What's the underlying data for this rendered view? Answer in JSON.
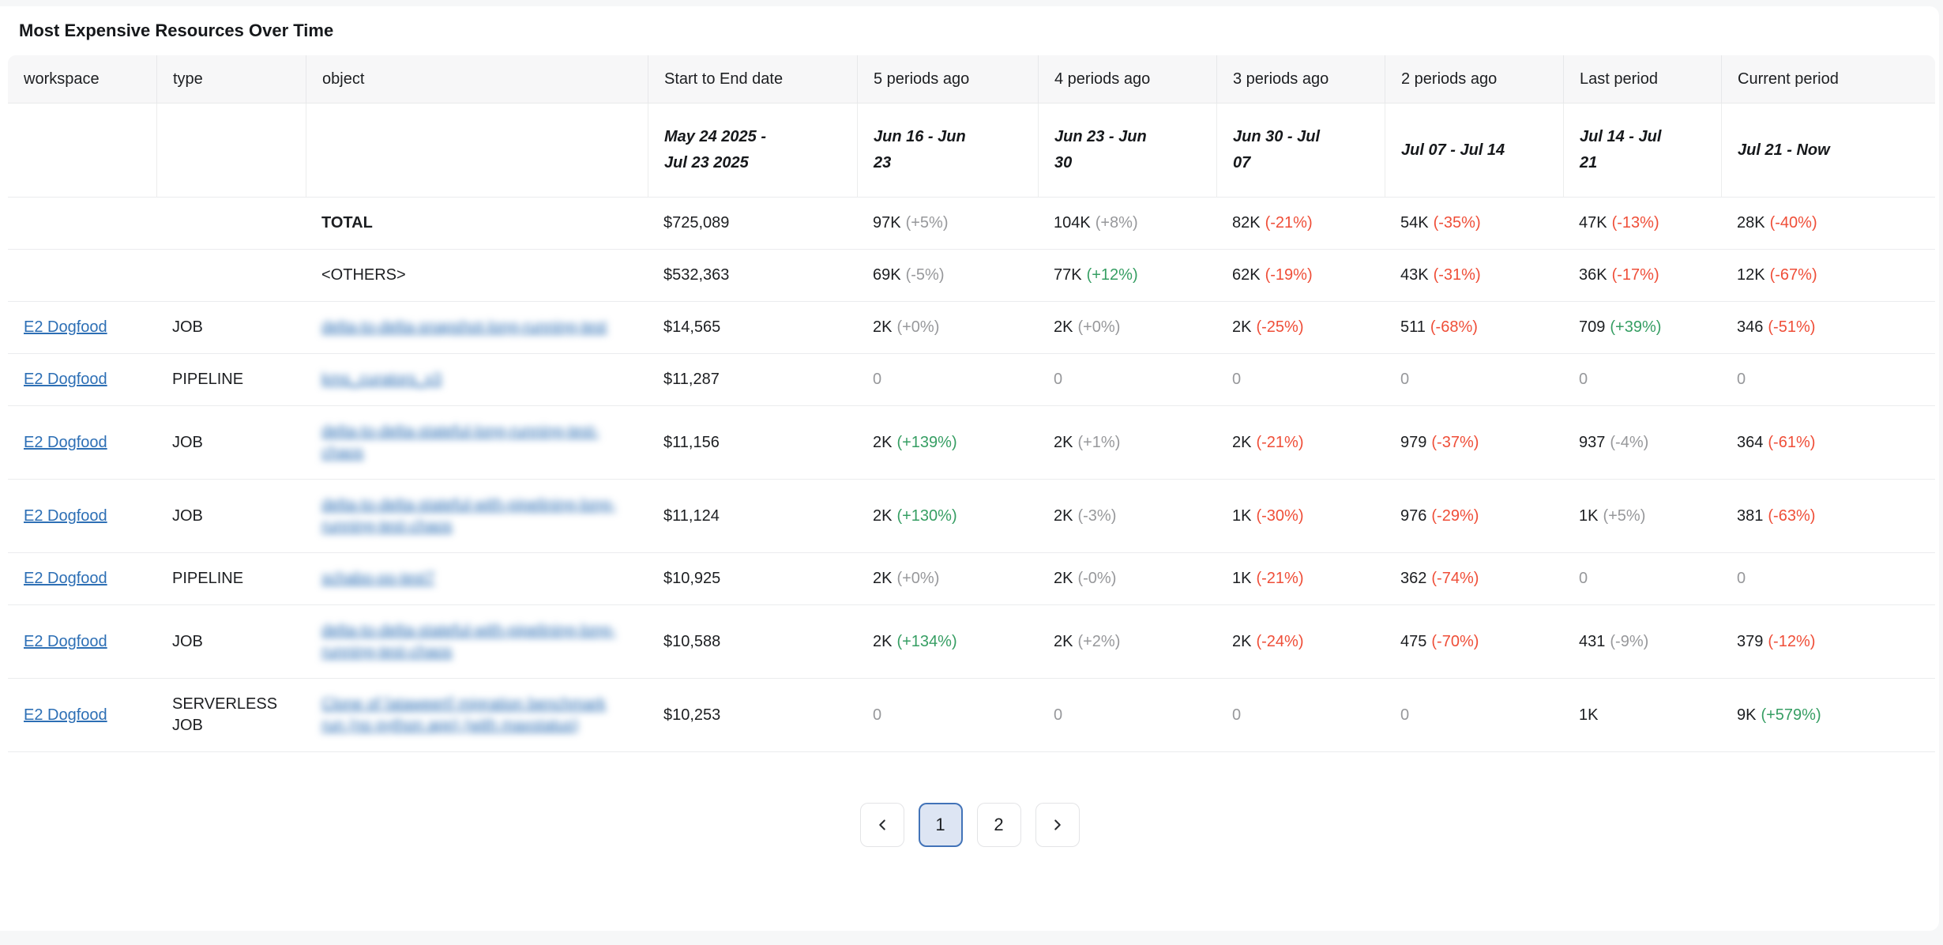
{
  "title": "Most Expensive Resources Over Time",
  "colors": {
    "accent_red": "#ef4e38",
    "accent_green": "#369e63",
    "muted_gray": "#97989b",
    "link_blue": "#2d6fb5",
    "header_bg": "#f7f7f8",
    "active_page_bg": "#dde5f3",
    "active_page_border": "#4273b8"
  },
  "table": {
    "columns": [
      "workspace",
      "type",
      "object",
      "Start to End date",
      "5 periods ago",
      "4 periods ago",
      "3 periods ago",
      "2 periods ago",
      "Last period",
      "Current period"
    ],
    "period_ranges": {
      "start_to_end": "May 24 2025 - Jul 23 2025",
      "periods": [
        "Jun 16 - Jun 23",
        "Jun 23 - Jun 30",
        "Jun 30 - Jul 07",
        "Jul 07 - Jul 14",
        "Jul 14 - Jul 21",
        "Jul 21 - Now"
      ]
    },
    "rows": [
      {
        "workspace": "",
        "type": "",
        "object": "TOTAL",
        "object_bold": true,
        "object_blurred": false,
        "cost": "$725,089",
        "periods": [
          {
            "value": "97K",
            "pct": "(+5%)",
            "pct_color": "gray"
          },
          {
            "value": "104K",
            "pct": "(+8%)",
            "pct_color": "gray"
          },
          {
            "value": "82K",
            "pct": "(-21%)",
            "pct_color": "red"
          },
          {
            "value": "54K",
            "pct": "(-35%)",
            "pct_color": "red"
          },
          {
            "value": "47K",
            "pct": "(-13%)",
            "pct_color": "red"
          },
          {
            "value": "28K",
            "pct": "(-40%)",
            "pct_color": "red"
          }
        ]
      },
      {
        "workspace": "",
        "type": "",
        "object": "<OTHERS>",
        "object_bold": false,
        "object_blurred": false,
        "cost": "$532,363",
        "periods": [
          {
            "value": "69K",
            "pct": "(-5%)",
            "pct_color": "gray"
          },
          {
            "value": "77K",
            "pct": "(+12%)",
            "pct_color": "green"
          },
          {
            "value": "62K",
            "pct": "(-19%)",
            "pct_color": "red"
          },
          {
            "value": "43K",
            "pct": "(-31%)",
            "pct_color": "red"
          },
          {
            "value": "36K",
            "pct": "(-17%)",
            "pct_color": "red"
          },
          {
            "value": "12K",
            "pct": "(-67%)",
            "pct_color": "red"
          }
        ]
      },
      {
        "workspace": "E2 Dogfood",
        "type": "JOB",
        "object": "delta-to-delta-snapshot-long-running-test",
        "object_bold": false,
        "object_blurred": true,
        "cost": "$14,565",
        "periods": [
          {
            "value": "2K",
            "pct": "(+0%)",
            "pct_color": "gray"
          },
          {
            "value": "2K",
            "pct": "(+0%)",
            "pct_color": "gray"
          },
          {
            "value": "2K",
            "pct": "(-25%)",
            "pct_color": "red"
          },
          {
            "value": "511",
            "pct": "(-68%)",
            "pct_color": "red"
          },
          {
            "value": "709",
            "pct": "(+39%)",
            "pct_color": "green"
          },
          {
            "value": "346",
            "pct": "(-51%)",
            "pct_color": "red"
          }
        ]
      },
      {
        "workspace": "E2 Dogfood",
        "type": "PIPELINE",
        "object": "kms_curators_v3",
        "object_bold": false,
        "object_blurred": true,
        "cost": "$11,287",
        "periods": [
          {
            "value": "0",
            "value_dim": true
          },
          {
            "value": "0",
            "value_dim": true
          },
          {
            "value": "0",
            "value_dim": true
          },
          {
            "value": "0",
            "value_dim": true
          },
          {
            "value": "0",
            "value_dim": true
          },
          {
            "value": "0",
            "value_dim": true
          }
        ]
      },
      {
        "workspace": "E2 Dogfood",
        "type": "JOB",
        "object": "delta-to-delta-stateful-long-running-test-chaos",
        "object_bold": false,
        "object_blurred": true,
        "cost": "$11,156",
        "periods": [
          {
            "value": "2K",
            "pct": "(+139%)",
            "pct_color": "green"
          },
          {
            "value": "2K",
            "pct": "(+1%)",
            "pct_color": "gray"
          },
          {
            "value": "2K",
            "pct": "(-21%)",
            "pct_color": "red"
          },
          {
            "value": "979",
            "pct": "(-37%)",
            "pct_color": "red"
          },
          {
            "value": "937",
            "pct": "(-4%)",
            "pct_color": "gray"
          },
          {
            "value": "364",
            "pct": "(-61%)",
            "pct_color": "red"
          }
        ]
      },
      {
        "workspace": "E2 Dogfood",
        "type": "JOB",
        "object": "delta-to-delta-stateful-with-pipelining-long-running-test-chaos",
        "object_bold": false,
        "object_blurred": true,
        "cost": "$11,124",
        "periods": [
          {
            "value": "2K",
            "pct": "(+130%)",
            "pct_color": "green"
          },
          {
            "value": "2K",
            "pct": "(-3%)",
            "pct_color": "gray"
          },
          {
            "value": "1K",
            "pct": "(-30%)",
            "pct_color": "red"
          },
          {
            "value": "976",
            "pct": "(-29%)",
            "pct_color": "red"
          },
          {
            "value": "1K",
            "pct": "(+5%)",
            "pct_color": "gray"
          },
          {
            "value": "381",
            "pct": "(-63%)",
            "pct_color": "red"
          }
        ]
      },
      {
        "workspace": "E2 Dogfood",
        "type": "PIPELINE",
        "object": "schabo-oo-test7",
        "object_bold": false,
        "object_blurred": true,
        "cost": "$10,925",
        "periods": [
          {
            "value": "2K",
            "pct": "(+0%)",
            "pct_color": "gray"
          },
          {
            "value": "2K",
            "pct": "(-0%)",
            "pct_color": "gray"
          },
          {
            "value": "1K",
            "pct": "(-21%)",
            "pct_color": "red"
          },
          {
            "value": "362",
            "pct": "(-74%)",
            "pct_color": "red"
          },
          {
            "value": "0",
            "value_dim": true
          },
          {
            "value": "0",
            "value_dim": true
          }
        ]
      },
      {
        "workspace": "E2 Dogfood",
        "type": "JOB",
        "object": "delta-to-delta-stateful-with-pipelining-long-running-test-chaos",
        "object_bold": false,
        "object_blurred": true,
        "cost": "$10,588",
        "periods": [
          {
            "value": "2K",
            "pct": "(+134%)",
            "pct_color": "green"
          },
          {
            "value": "2K",
            "pct": "(+2%)",
            "pct_color": "gray"
          },
          {
            "value": "2K",
            "pct": "(-24%)",
            "pct_color": "red"
          },
          {
            "value": "475",
            "pct": "(-70%)",
            "pct_color": "red"
          },
          {
            "value": "431",
            "pct": "(-9%)",
            "pct_color": "gray"
          },
          {
            "value": "379",
            "pct": "(-12%)",
            "pct_color": "red"
          }
        ]
      },
      {
        "workspace": "E2 Dogfood",
        "type": "SERVERLESS JOB",
        "object": "Clone of [ataweert] migration benchmark run (no python app) (with maxstatus)",
        "object_bold": false,
        "object_blurred": true,
        "cost": "$10,253",
        "periods": [
          {
            "value": "0",
            "value_dim": true
          },
          {
            "value": "0",
            "value_dim": true
          },
          {
            "value": "0",
            "value_dim": true
          },
          {
            "value": "0",
            "value_dim": true
          },
          {
            "value": "1K"
          },
          {
            "value": "9K",
            "pct": "(+579%)",
            "pct_color": "green"
          }
        ]
      }
    ]
  },
  "pagination": {
    "pages": [
      "1",
      "2"
    ],
    "active_page": "1"
  }
}
